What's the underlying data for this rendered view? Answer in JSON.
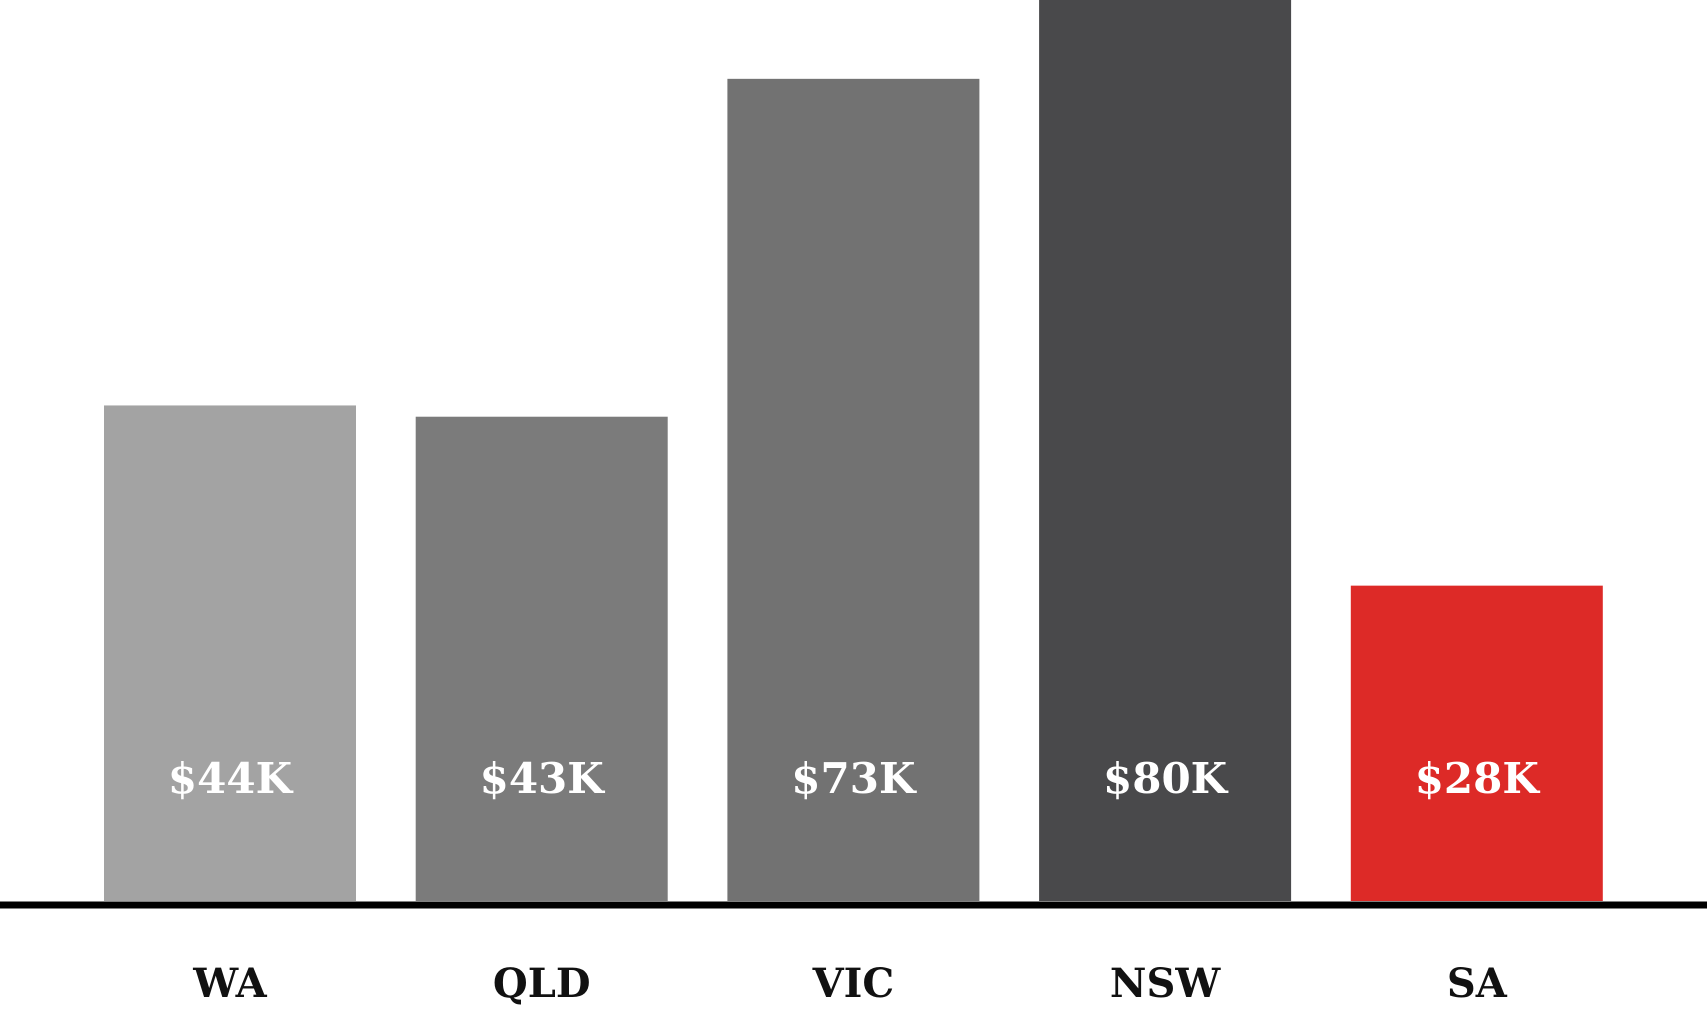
{
  "chart_data": {
    "type": "bar",
    "categories": [
      "WA",
      "QLD",
      "VIC",
      "NSW",
      "SA"
    ],
    "values": [
      44,
      43,
      73,
      80,
      28
    ],
    "value_labels": [
      "$44K",
      "$43K",
      "$73K",
      "$80K",
      "$28K"
    ],
    "colors": [
      "#a3a3a3",
      "#7b7b7b",
      "#727272",
      "#49494b",
      "#dd2a27"
    ]
  }
}
